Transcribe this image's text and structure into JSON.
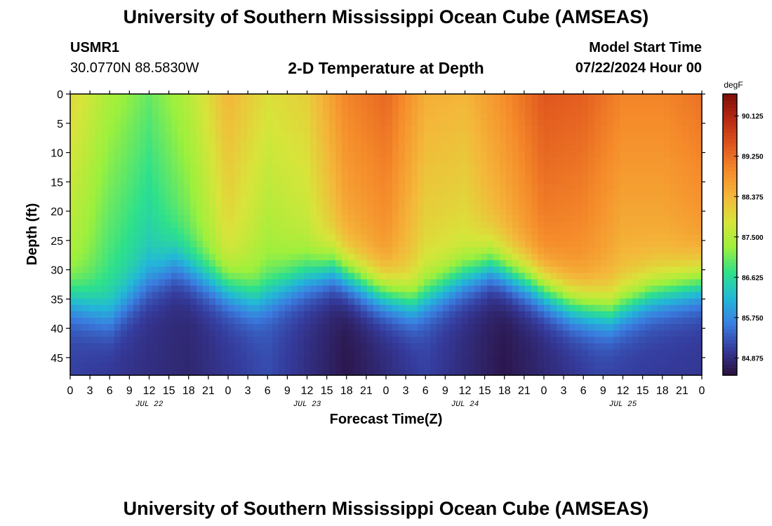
{
  "header": {
    "title": "University of Southern Mississippi Ocean Cube (AMSEAS)",
    "station_id": "USMR1",
    "coordinates": "30.0770N  88.5830W",
    "plot_title": "2-D Temperature at Depth",
    "model_label": "Model Start Time",
    "model_start": "07/22/2024 Hour 00"
  },
  "footer": {
    "title": "University of Southern Mississippi Ocean Cube (AMSEAS)"
  },
  "chart_data": {
    "type": "heatmap",
    "title": "2-D Temperature at Depth",
    "xlabel": "Forecast Time(Z)",
    "ylabel": "Depth (ft)",
    "x_hours_range": [
      0,
      96
    ],
    "y_depth_range_ft": [
      0,
      48
    ],
    "x_tick_labels": [
      "0",
      "3",
      "6",
      "9",
      "12",
      "15",
      "18",
      "21",
      "0",
      "3",
      "6",
      "9",
      "12",
      "15",
      "18",
      "21",
      "0",
      "3",
      "6",
      "9",
      "12",
      "15",
      "18",
      "21",
      "0",
      "3",
      "6",
      "9",
      "12",
      "15",
      "18",
      "21",
      "0"
    ],
    "day_labels": [
      "JUL 22",
      "JUL 23",
      "JUL 24",
      "JUL 25"
    ],
    "y_ticks": [
      0,
      5,
      10,
      15,
      20,
      25,
      30,
      35,
      40,
      45
    ],
    "colorbar": {
      "unit": "degF",
      "range": [
        84.5,
        90.6
      ],
      "tick_values": [
        84.875,
        85.75,
        86.625,
        87.5,
        88.375,
        89.25,
        90.125
      ],
      "tick_labels": [
        "84.875",
        "85.750",
        "86.625",
        "87.500",
        "88.375",
        "89.250",
        "90.125"
      ],
      "colors": [
        "#2a0f3c",
        "#353b9c",
        "#3a7de0",
        "#22b8d8",
        "#2de08c",
        "#9df03c",
        "#d8e43a",
        "#f4b73a",
        "#f58a2a",
        "#e0561e",
        "#b82a12",
        "#7e0e08"
      ]
    },
    "thermocline_depth_ft_by_hour": [
      {
        "hour": 0,
        "depth": 32
      },
      {
        "hour": 6,
        "depth": 35
      },
      {
        "hour": 12,
        "depth": 29
      },
      {
        "hour": 16,
        "depth": 26
      },
      {
        "hour": 22,
        "depth": 29
      },
      {
        "hour": 28,
        "depth": 32
      },
      {
        "hour": 34,
        "depth": 29
      },
      {
        "hour": 40,
        "depth": 26.5
      },
      {
        "hour": 46,
        "depth": 30
      },
      {
        "hour": 52,
        "depth": 32.5
      },
      {
        "hour": 58,
        "depth": 29
      },
      {
        "hour": 64,
        "depth": 26
      },
      {
        "hour": 70,
        "depth": 29
      },
      {
        "hour": 76,
        "depth": 32.5
      },
      {
        "hour": 82,
        "depth": 34
      },
      {
        "hour": 88,
        "depth": 31
      },
      {
        "hour": 96,
        "depth": 29
      }
    ],
    "mixed_layer_temp_degF_by_hour": [
      {
        "hour": 0,
        "temp": 88.0
      },
      {
        "hour": 6,
        "temp": 87.4
      },
      {
        "hour": 12,
        "temp": 87.0
      },
      {
        "hour": 18,
        "temp": 87.5
      },
      {
        "hour": 24,
        "temp": 88.4
      },
      {
        "hour": 30,
        "temp": 87.9
      },
      {
        "hour": 36,
        "temp": 88.1
      },
      {
        "hour": 42,
        "temp": 89.0
      },
      {
        "hour": 48,
        "temp": 89.3
      },
      {
        "hour": 54,
        "temp": 88.5
      },
      {
        "hour": 60,
        "temp": 88.4
      },
      {
        "hour": 66,
        "temp": 88.9
      },
      {
        "hour": 72,
        "temp": 89.5
      },
      {
        "hour": 78,
        "temp": 89.4
      },
      {
        "hour": 84,
        "temp": 89.0
      },
      {
        "hour": 90,
        "temp": 89.0
      },
      {
        "hour": 96,
        "temp": 89.2
      }
    ],
    "deep_temp_degF_by_hour": [
      {
        "hour": 0,
        "temp": 85.1
      },
      {
        "hour": 18,
        "temp": 84.8
      },
      {
        "hour": 30,
        "temp": 85.2
      },
      {
        "hour": 42,
        "temp": 84.6
      },
      {
        "hour": 54,
        "temp": 85.1
      },
      {
        "hour": 66,
        "temp": 84.6
      },
      {
        "hour": 80,
        "temp": 85.1
      },
      {
        "hour": 96,
        "temp": 85.0
      }
    ]
  }
}
